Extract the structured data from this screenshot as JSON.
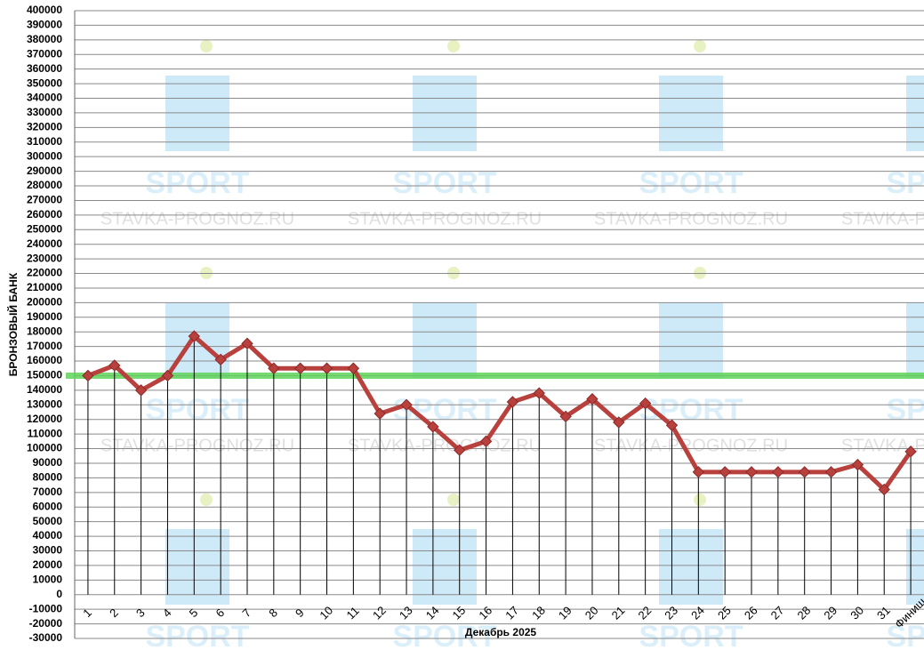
{
  "chart_data": {
    "type": "line",
    "y_label": "БРОНЗОВЫЙ БАНК",
    "x_label": "Декабрь 2025",
    "categories": [
      "1",
      "2",
      "3",
      "4",
      "5",
      "6",
      "7",
      "8",
      "9",
      "10",
      "11",
      "12",
      "13",
      "14",
      "15",
      "16",
      "17",
      "18",
      "19",
      "20",
      "21",
      "22",
      "23",
      "24",
      "25",
      "26",
      "27",
      "28",
      "29",
      "30",
      "31",
      "Финиш"
    ],
    "series": [
      {
        "color": "#b8403d",
        "values": [
          150000,
          157000,
          140000,
          150000,
          177000,
          161000,
          172000,
          155000,
          155000,
          155000,
          155000,
          124000,
          130000,
          115000,
          99000,
          105000,
          132000,
          138000,
          122000,
          134000,
          118000,
          131000,
          116000,
          84000,
          84000,
          84000,
          84000,
          84000,
          84000,
          89000,
          72000,
          98000
        ]
      }
    ],
    "reference_line": {
      "value": 150000,
      "color": "#5fd35a"
    },
    "ylim": [
      -30000,
      400000
    ],
    "yticks": [
      -30000,
      -20000,
      -10000,
      0,
      10000,
      20000,
      30000,
      40000,
      50000,
      60000,
      70000,
      80000,
      90000,
      100000,
      110000,
      120000,
      130000,
      140000,
      150000,
      160000,
      170000,
      180000,
      190000,
      200000,
      210000,
      220000,
      230000,
      240000,
      250000,
      260000,
      270000,
      280000,
      290000,
      300000,
      310000,
      320000,
      330000,
      340000,
      350000,
      360000,
      370000,
      380000,
      390000,
      400000
    ],
    "grid": true,
    "drop_lines": true,
    "watermark": [
      "SPORT",
      "STAVKA-PROGNOZ.RU"
    ]
  }
}
